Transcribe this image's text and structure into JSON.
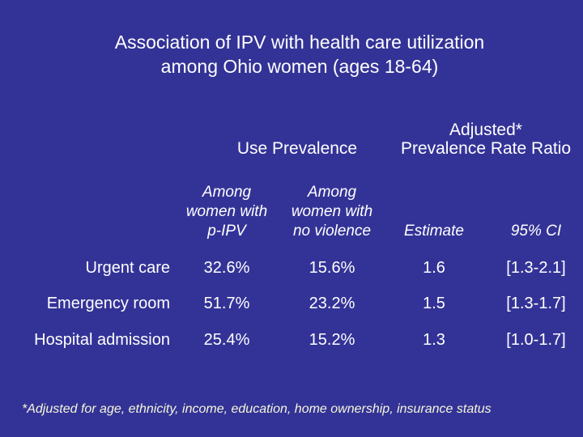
{
  "slide": {
    "title": "Association of IPV with health care utilization\namong Ohio women (ages 18-64)",
    "colors": {
      "background": "#333397",
      "text": "#ffffff",
      "footnote_text": "#f6f6da"
    }
  },
  "table": {
    "group_headers": [
      "Use Prevalence",
      "Adjusted*\nPrevalence Rate Ratio"
    ],
    "column_headers": [
      "Among\nwomen with\np-IPV",
      "Among\nwomen with\nno violence",
      "Estimate",
      "95% CI"
    ],
    "rows": [
      {
        "label": "Urgent care",
        "p_ipv": "32.6%",
        "no_violence": "15.6%",
        "estimate": "1.6",
        "ci": "[1.3-2.1]"
      },
      {
        "label": "Emergency room",
        "p_ipv": "51.7%",
        "no_violence": "23.2%",
        "estimate": "1.5",
        "ci": "[1.3-1.7]"
      },
      {
        "label": "Hospital admission",
        "p_ipv": "25.4%",
        "no_violence": "15.2%",
        "estimate": "1.3",
        "ci": "[1.0-1.7]"
      }
    ]
  },
  "footnote": "*Adjusted for age, ethnicity, income, education, home ownership, insurance status",
  "chart_data": {
    "type": "table",
    "title": "Association of IPV with health care utilization among Ohio women (ages 18-64)",
    "columns": [
      "",
      "Among women with p-IPV",
      "Among women with no violence",
      "Estimate",
      "95% CI"
    ],
    "column_groups": [
      "Use Prevalence",
      "Adjusted* Prevalence Rate Ratio"
    ],
    "rows": [
      [
        "Urgent care",
        "32.6%",
        "15.6%",
        "1.6",
        "[1.3-2.1]"
      ],
      [
        "Emergency room",
        "51.7%",
        "23.2%",
        "1.5",
        "[1.3-1.7]"
      ],
      [
        "Hospital admission",
        "25.4%",
        "15.2%",
        "1.3",
        "[1.0-1.7]"
      ]
    ],
    "footnote": "*Adjusted for age, ethnicity, income, education, home ownership, insurance status"
  }
}
